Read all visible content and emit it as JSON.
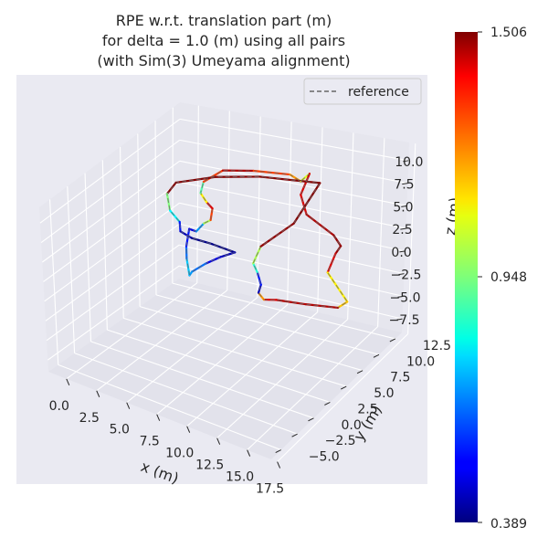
{
  "chart_data": {
    "type": "line",
    "title": [
      "RPE w.r.t. translation part (m)",
      "for delta = 1.0 (m) using all pairs",
      "(with Sim(3) Umeyama alignment)"
    ],
    "xlabel": "x (m)",
    "ylabel": "y (m)",
    "zlabel": "z (m)",
    "x_ticks": [
      "0.0",
      "2.5",
      "5.0",
      "7.5",
      "10.0",
      "12.5",
      "15.0",
      "17.5"
    ],
    "y_ticks": [
      "−5.0",
      "−2.5",
      "0.0",
      "2.5",
      "5.0",
      "7.5",
      "10.0",
      "12.5"
    ],
    "z_ticks": [
      "−7.5",
      "−5.0",
      "−2.5",
      "0.0",
      "2.5",
      "5.0",
      "7.5",
      "10.0"
    ],
    "legend": {
      "label": "reference",
      "placement": "top-right",
      "style": "dashed",
      "color": "#666666"
    },
    "colorbar": {
      "colormap": "jet",
      "min": 0.389,
      "max": 1.506,
      "tick_labels": [
        "1.506",
        "0.948",
        "0.389"
      ]
    },
    "grid": true,
    "background": "#eaeaf2",
    "series": [
      {
        "trajectory": [
          {
            "x": 4.0,
            "y": 5.0,
            "z": -1.5,
            "rpe": 0.75
          },
          {
            "x": 3.5,
            "y": 5.5,
            "z": 0.0,
            "rpe": 0.65
          },
          {
            "x": 3.2,
            "y": 6.0,
            "z": 1.0,
            "rpe": 0.55
          },
          {
            "x": 3.0,
            "y": 6.8,
            "z": 2.5,
            "rpe": 0.5
          },
          {
            "x": 3.3,
            "y": 7.3,
            "z": 2.0,
            "rpe": 0.7
          },
          {
            "x": 3.8,
            "y": 7.5,
            "z": 3.0,
            "rpe": 1.0
          },
          {
            "x": 4.3,
            "y": 7.6,
            "z": 3.5,
            "rpe": 1.3
          },
          {
            "x": 4.5,
            "y": 7.5,
            "z": 5.0,
            "rpe": 1.4
          },
          {
            "x": 4.3,
            "y": 7.0,
            "z": 6.0,
            "rpe": 1.1
          },
          {
            "x": 4.2,
            "y": 6.3,
            "z": 7.5,
            "rpe": 0.9
          },
          {
            "x": 4.5,
            "y": 6.2,
            "z": 9.0,
            "rpe": 1.3
          },
          {
            "x": 5.1,
            "y": 7.9,
            "z": 9.4,
            "rpe": 1.45
          },
          {
            "x": 7.3,
            "y": 8.4,
            "z": 9.7,
            "rpe": 1.3
          },
          {
            "x": 10.0,
            "y": 8.8,
            "z": 9.8,
            "rpe": 1.2
          },
          {
            "x": 10.5,
            "y": 9.5,
            "z": 8.7,
            "rpe": 1.05
          },
          {
            "x": 11.1,
            "y": 9.7,
            "z": 9.6,
            "rpe": 1.4
          },
          {
            "x": 10.8,
            "y": 9.0,
            "z": 7.6,
            "rpe": 1.4
          },
          {
            "x": 11.3,
            "y": 9.0,
            "z": 5.5,
            "rpe": 1.45
          },
          {
            "x": 13.0,
            "y": 10.0,
            "z": 3.0,
            "rpe": 1.48
          },
          {
            "x": 13.5,
            "y": 10.2,
            "z": 1.8,
            "rpe": 1.48
          },
          {
            "x": 13.2,
            "y": 10.0,
            "z": 1.0,
            "rpe": 1.4
          },
          {
            "x": 12.8,
            "y": 9.6,
            "z": -1.0,
            "rpe": 1.1
          },
          {
            "x": 14.0,
            "y": 10.5,
            "z": -4.5,
            "rpe": 1.15
          },
          {
            "x": 13.5,
            "y": 10.0,
            "z": -5.0,
            "rpe": 1.45
          },
          {
            "x": 11.5,
            "y": 8.8,
            "z": -4.5,
            "rpe": 1.45
          },
          {
            "x": 9.5,
            "y": 8.0,
            "z": -4.2,
            "rpe": 1.4
          },
          {
            "x": 8.7,
            "y": 7.6,
            "z": -4.2,
            "rpe": 1.2
          },
          {
            "x": 8.3,
            "y": 7.5,
            "z": -3.5,
            "rpe": 0.45
          },
          {
            "x": 8.5,
            "y": 7.5,
            "z": -2.5,
            "rpe": 0.55
          },
          {
            "x": 8.3,
            "y": 7.3,
            "z": -1.0,
            "rpe": 0.85
          },
          {
            "x": 8.0,
            "y": 7.2,
            "z": 0.0,
            "rpe": 1.0
          },
          {
            "x": 8.5,
            "y": 7.4,
            "z": 2.0,
            "rpe": 1.48
          },
          {
            "x": 10.5,
            "y": 8.6,
            "z": 4.5,
            "rpe": 1.5
          },
          {
            "x": 11.9,
            "y": 9.8,
            "z": 8.7,
            "rpe": 1.5
          },
          {
            "x": 8.0,
            "y": 8.0,
            "z": 9.5,
            "rpe": 1.5
          },
          {
            "x": 5.0,
            "y": 7.0,
            "z": 9.2,
            "rpe": 1.5
          },
          {
            "x": 2.5,
            "y": 5.8,
            "z": 8.5,
            "rpe": 1.5
          },
          {
            "x": 2.5,
            "y": 4.5,
            "z": 8.0,
            "rpe": 0.95
          },
          {
            "x": 3.0,
            "y": 4.0,
            "z": 6.5,
            "rpe": 0.8
          },
          {
            "x": 3.5,
            "y": 4.5,
            "z": 5.0,
            "rpe": 0.55
          },
          {
            "x": 3.5,
            "y": 4.6,
            "z": 3.8,
            "rpe": 0.45
          },
          {
            "x": 4.2,
            "y": 5.0,
            "z": 3.0,
            "rpe": 0.4
          },
          {
            "x": 5.5,
            "y": 5.6,
            "z": 2.4,
            "rpe": 0.4
          },
          {
            "x": 7.0,
            "y": 6.3,
            "z": 1.5,
            "rpe": 0.45
          },
          {
            "x": 6.0,
            "y": 6.0,
            "z": 0.8,
            "rpe": 0.5
          },
          {
            "x": 5.0,
            "y": 5.6,
            "z": -0.1,
            "rpe": 0.65
          },
          {
            "x": 4.2,
            "y": 5.0,
            "z": -1.0,
            "rpe": 0.7
          },
          {
            "x": 4.0,
            "y": 5.0,
            "z": -1.5,
            "rpe": 0.75
          }
        ]
      }
    ]
  }
}
